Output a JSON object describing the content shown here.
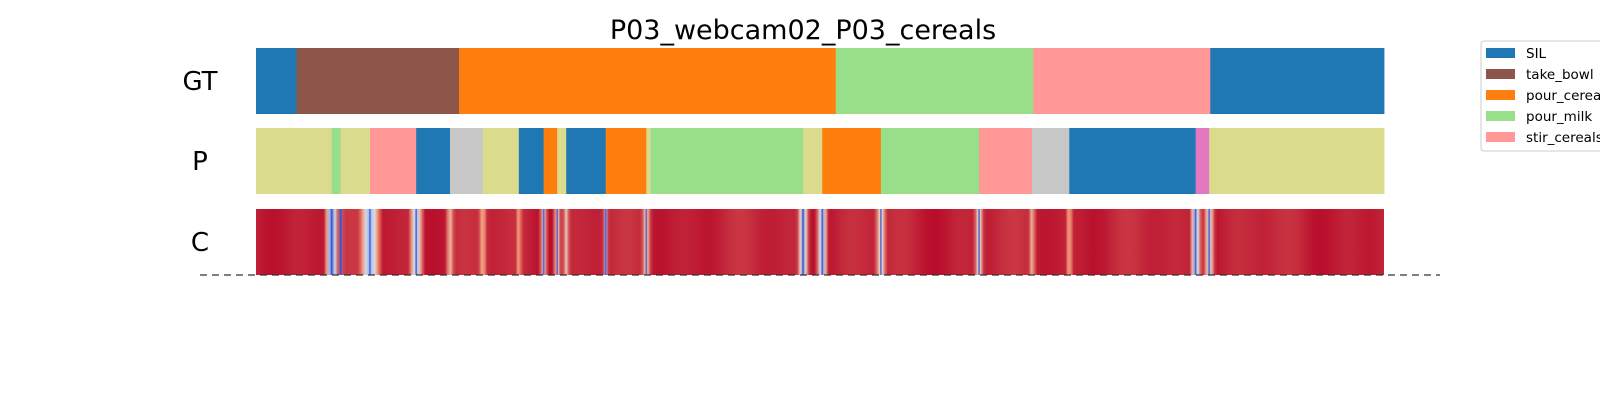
{
  "chart_data": {
    "type": "segmentation",
    "title": "P03_webcam02_P03_cereals",
    "x_range": [
      0,
      1
    ],
    "rows": [
      {
        "label": "GT",
        "segments": [
          {
            "start": 0.0,
            "end": 0.036,
            "class": "SIL"
          },
          {
            "start": 0.036,
            "end": 0.18,
            "class": "take_bowl"
          },
          {
            "start": 0.18,
            "end": 0.514,
            "class": "pour_cereals"
          },
          {
            "start": 0.514,
            "end": 0.689,
            "class": "pour_milk"
          },
          {
            "start": 0.689,
            "end": 0.846,
            "class": "stir_cereals"
          },
          {
            "start": 0.846,
            "end": 1.0,
            "class": "SIL"
          }
        ]
      },
      {
        "label": "P",
        "segments": [
          {
            "start": 0.0,
            "end": 0.067,
            "class": "olive"
          },
          {
            "start": 0.067,
            "end": 0.075,
            "class": "pour_milk"
          },
          {
            "start": 0.075,
            "end": 0.101,
            "class": "olive"
          },
          {
            "start": 0.101,
            "end": 0.142,
            "class": "stir_cereals"
          },
          {
            "start": 0.142,
            "end": 0.172,
            "class": "SIL"
          },
          {
            "start": 0.172,
            "end": 0.201,
            "class": "gray"
          },
          {
            "start": 0.201,
            "end": 0.233,
            "class": "olive"
          },
          {
            "start": 0.233,
            "end": 0.255,
            "class": "SIL"
          },
          {
            "start": 0.255,
            "end": 0.267,
            "class": "pour_cereals"
          },
          {
            "start": 0.267,
            "end": 0.275,
            "class": "olive"
          },
          {
            "start": 0.275,
            "end": 0.31,
            "class": "SIL"
          },
          {
            "start": 0.31,
            "end": 0.346,
            "class": "pour_cereals"
          },
          {
            "start": 0.346,
            "end": 0.35,
            "class": "olive"
          },
          {
            "start": 0.35,
            "end": 0.485,
            "class": "pour_milk"
          },
          {
            "start": 0.485,
            "end": 0.502,
            "class": "olive"
          },
          {
            "start": 0.502,
            "end": 0.554,
            "class": "pour_cereals"
          },
          {
            "start": 0.554,
            "end": 0.641,
            "class": "pour_milk"
          },
          {
            "start": 0.641,
            "end": 0.688,
            "class": "stir_cereals"
          },
          {
            "start": 0.688,
            "end": 0.721,
            "class": "gray"
          },
          {
            "start": 0.721,
            "end": 0.833,
            "class": "SIL"
          },
          {
            "start": 0.833,
            "end": 0.845,
            "class": "pink"
          },
          {
            "start": 0.845,
            "end": 1.0,
            "class": "olive"
          }
        ]
      },
      {
        "label": "C",
        "type": "heatmap",
        "dips": [
          {
            "pos": 0.067,
            "depth": 0.95,
            "width": 0.007
          },
          {
            "pos": 0.075,
            "depth": 0.9,
            "width": 0.003
          },
          {
            "pos": 0.101,
            "depth": 0.75,
            "width": 0.012
          },
          {
            "pos": 0.142,
            "depth": 0.7,
            "width": 0.008
          },
          {
            "pos": 0.172,
            "depth": 0.45,
            "width": 0.005
          },
          {
            "pos": 0.201,
            "depth": 0.45,
            "width": 0.005
          },
          {
            "pos": 0.233,
            "depth": 0.4,
            "width": 0.004
          },
          {
            "pos": 0.255,
            "depth": 0.55,
            "width": 0.004
          },
          {
            "pos": 0.267,
            "depth": 0.55,
            "width": 0.004
          },
          {
            "pos": 0.275,
            "depth": 0.45,
            "width": 0.004
          },
          {
            "pos": 0.31,
            "depth": 0.65,
            "width": 0.003
          },
          {
            "pos": 0.346,
            "depth": 0.55,
            "width": 0.005
          },
          {
            "pos": 0.485,
            "depth": 0.8,
            "width": 0.006
          },
          {
            "pos": 0.502,
            "depth": 0.8,
            "width": 0.006
          },
          {
            "pos": 0.554,
            "depth": 0.6,
            "width": 0.006
          },
          {
            "pos": 0.641,
            "depth": 0.6,
            "width": 0.005
          },
          {
            "pos": 0.688,
            "depth": 0.45,
            "width": 0.004
          },
          {
            "pos": 0.721,
            "depth": 0.45,
            "width": 0.004
          },
          {
            "pos": 0.833,
            "depth": 0.8,
            "width": 0.006
          },
          {
            "pos": 0.845,
            "depth": 0.65,
            "width": 0.006
          }
        ]
      }
    ],
    "legend": {
      "placement": "top-right",
      "entries": [
        {
          "label": "SIL",
          "color": "#1f77b4"
        },
        {
          "label": "take_bowl",
          "color": "#8c564b"
        },
        {
          "label": "pour_cereals",
          "color": "#ff7f0e"
        },
        {
          "label": "pour_milk",
          "color": "#98df8a"
        },
        {
          "label": "stir_cereals",
          "color": "#ff9896"
        }
      ]
    },
    "colors": {
      "SIL": "#1f77b4",
      "take_bowl": "#8c564b",
      "pour_cereals": "#ff7f0e",
      "pour_milk": "#98df8a",
      "stir_cereals": "#ff9896",
      "olive": "#dbdb8d",
      "gray": "#c7c7c7",
      "pink": "#e377c2"
    },
    "baseline": "dashed"
  }
}
